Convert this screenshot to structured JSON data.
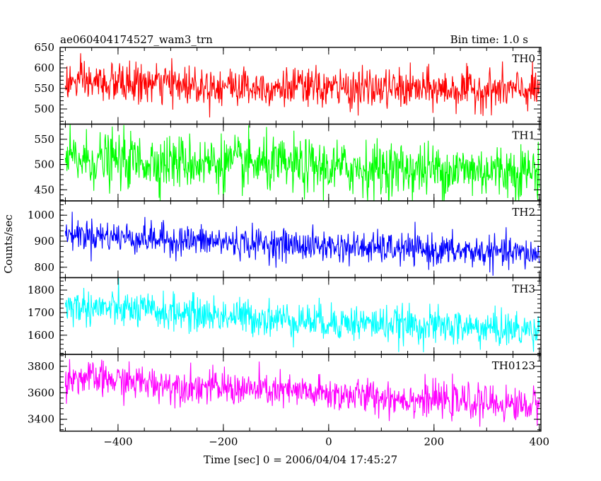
{
  "chart_data": {
    "type": "line",
    "title_left": "ae060404174527_wam3_trn",
    "title_right": "Bin time: 1.0 s",
    "xlabel": "Time [sec] 0 = 2006/04/04 17:45:27",
    "ylabel": "Counts/sec",
    "xlim": [
      -510,
      403
    ],
    "x_ticks": [
      -400,
      -200,
      0,
      200,
      400
    ],
    "x_tick_labels": [
      "−400",
      "−200",
      "0",
      "200",
      "400"
    ],
    "x_range": [
      -500,
      400
    ],
    "grid": false,
    "panels": [
      {
        "name": "TH0",
        "color": "#ff0000",
        "ylim": [
          463,
          650
        ],
        "y_ticks": [
          500,
          550,
          600,
          650
        ],
        "y_tick_labels": [
          "500",
          "550",
          "600",
          "650"
        ],
        "trend": [
          [
            -500,
            565
          ],
          [
            -300,
            560
          ],
          [
            0,
            550
          ],
          [
            400,
            545
          ]
        ],
        "noise_sd": 24
      },
      {
        "name": "TH1",
        "color": "#00ff00",
        "ylim": [
          428,
          580
        ],
        "y_ticks": [
          450,
          500,
          550
        ],
        "y_tick_labels": [
          "450",
          "500",
          "550"
        ],
        "trend": [
          [
            -500,
            510
          ],
          [
            -200,
            503
          ],
          [
            0,
            493
          ],
          [
            400,
            487
          ]
        ],
        "noise_sd": 27
      },
      {
        "name": "TH2",
        "color": "#0000ff",
        "ylim": [
          760,
          1055
        ],
        "y_ticks": [
          800,
          900,
          1000
        ],
        "y_tick_labels": [
          "800",
          "900",
          "1000"
        ],
        "trend": [
          [
            -500,
            930
          ],
          [
            -300,
            905
          ],
          [
            0,
            880
          ],
          [
            400,
            850
          ]
        ],
        "noise_sd": 30
      },
      {
        "name": "TH3",
        "color": "#00ffff",
        "ylim": [
          1515,
          1855
        ],
        "y_ticks": [
          1600,
          1700,
          1800
        ],
        "y_tick_labels": [
          "1600",
          "1700",
          "1800"
        ],
        "trend": [
          [
            -500,
            1730
          ],
          [
            -300,
            1700
          ],
          [
            0,
            1660
          ],
          [
            400,
            1620
          ]
        ],
        "noise_sd": 40
      },
      {
        "name": "TH0123",
        "color": "#ff00ff",
        "ylim": [
          3310,
          3890
        ],
        "y_ticks": [
          3400,
          3600,
          3800
        ],
        "y_tick_labels": [
          "3400",
          "3600",
          "3800"
        ],
        "trend": [
          [
            -500,
            3720
          ],
          [
            -300,
            3660
          ],
          [
            0,
            3590
          ],
          [
            400,
            3500
          ]
        ],
        "noise_sd": 65
      }
    ]
  }
}
